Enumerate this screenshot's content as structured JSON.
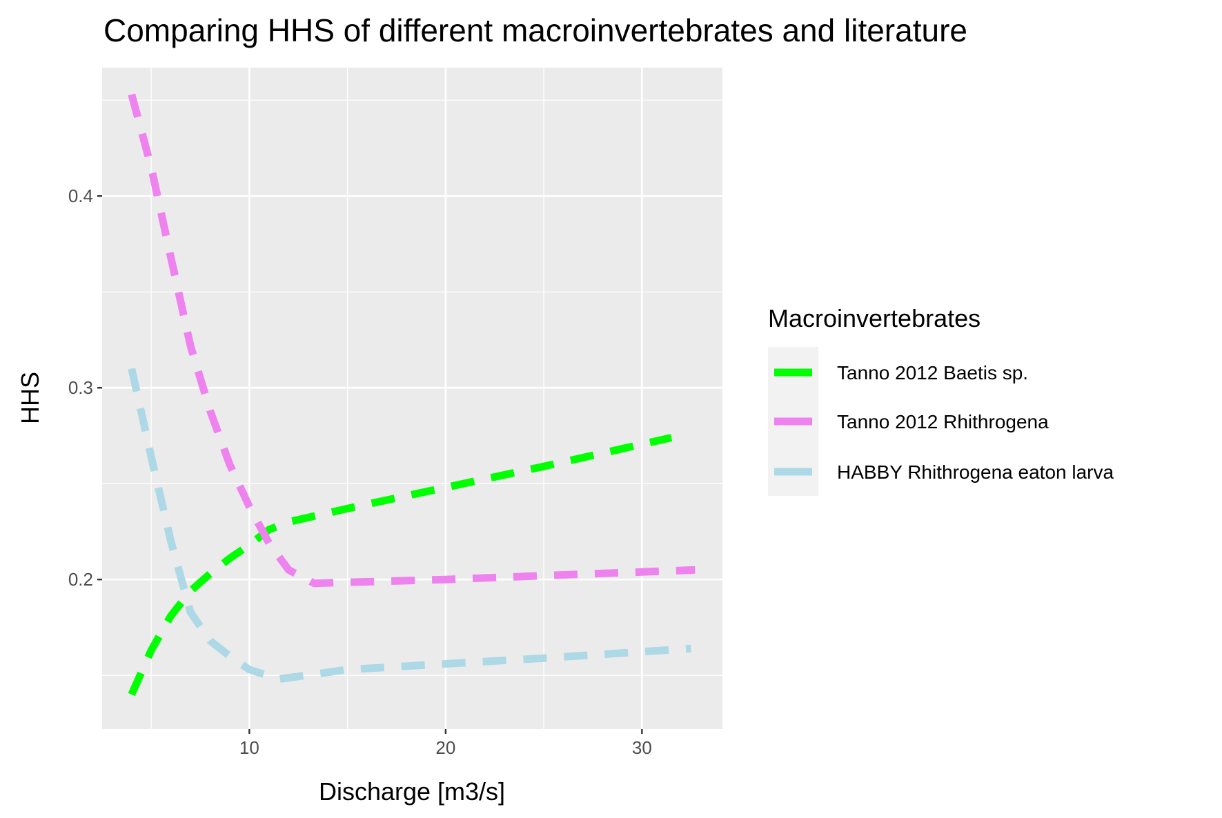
{
  "chart_data": {
    "type": "line",
    "title": "Comparing HHS of different macroinvertebrates and literature",
    "xlabel": "Discharge [m3/s]",
    "ylabel": "HHS",
    "xlim": [
      2.5,
      34.1
    ],
    "ylim": [
      0.122,
      0.467
    ],
    "x_ticks": [
      10,
      20,
      30
    ],
    "x_minor_ticks": [
      5,
      15,
      25
    ],
    "y_ticks": [
      0.2,
      0.3,
      0.4
    ],
    "y_minor_ticks": [
      0.15,
      0.25,
      0.35,
      0.45
    ],
    "grid": true,
    "background": "#EBEBEB",
    "legend": {
      "title": "Macroinvertebrates",
      "position": "right"
    },
    "series": [
      {
        "name": "Tanno 2012 Baetis sp.",
        "color": "#00FF00",
        "line_style": "dashed",
        "x": [
          4,
          5,
          6,
          7,
          8,
          9,
          10,
          11,
          12,
          15,
          20,
          25,
          31.5
        ],
        "y": [
          0.14,
          0.163,
          0.181,
          0.194,
          0.203,
          0.211,
          0.218,
          0.226,
          0.23,
          0.237,
          0.248,
          0.259,
          0.274
        ]
      },
      {
        "name": "Tanno 2012 Rhithrogena",
        "color": "#EE82EE",
        "line_style": "dashed",
        "x": [
          4,
          5,
          6,
          7,
          8,
          9,
          10,
          11,
          12,
          13.3,
          20,
          25,
          32.7
        ],
        "y": [
          0.453,
          0.415,
          0.368,
          0.322,
          0.288,
          0.26,
          0.238,
          0.219,
          0.205,
          0.198,
          0.2,
          0.202,
          0.205
        ]
      },
      {
        "name": "HABBY Rhithrogena eaton larva",
        "color": "#ADD8E6",
        "line_style": "dashed",
        "x": [
          4,
          5,
          6,
          7,
          8,
          9,
          10,
          11.5,
          15,
          20,
          25,
          32.5
        ],
        "y": [
          0.31,
          0.264,
          0.22,
          0.183,
          0.168,
          0.16,
          0.153,
          0.148,
          0.153,
          0.156,
          0.159,
          0.164
        ]
      }
    ]
  }
}
